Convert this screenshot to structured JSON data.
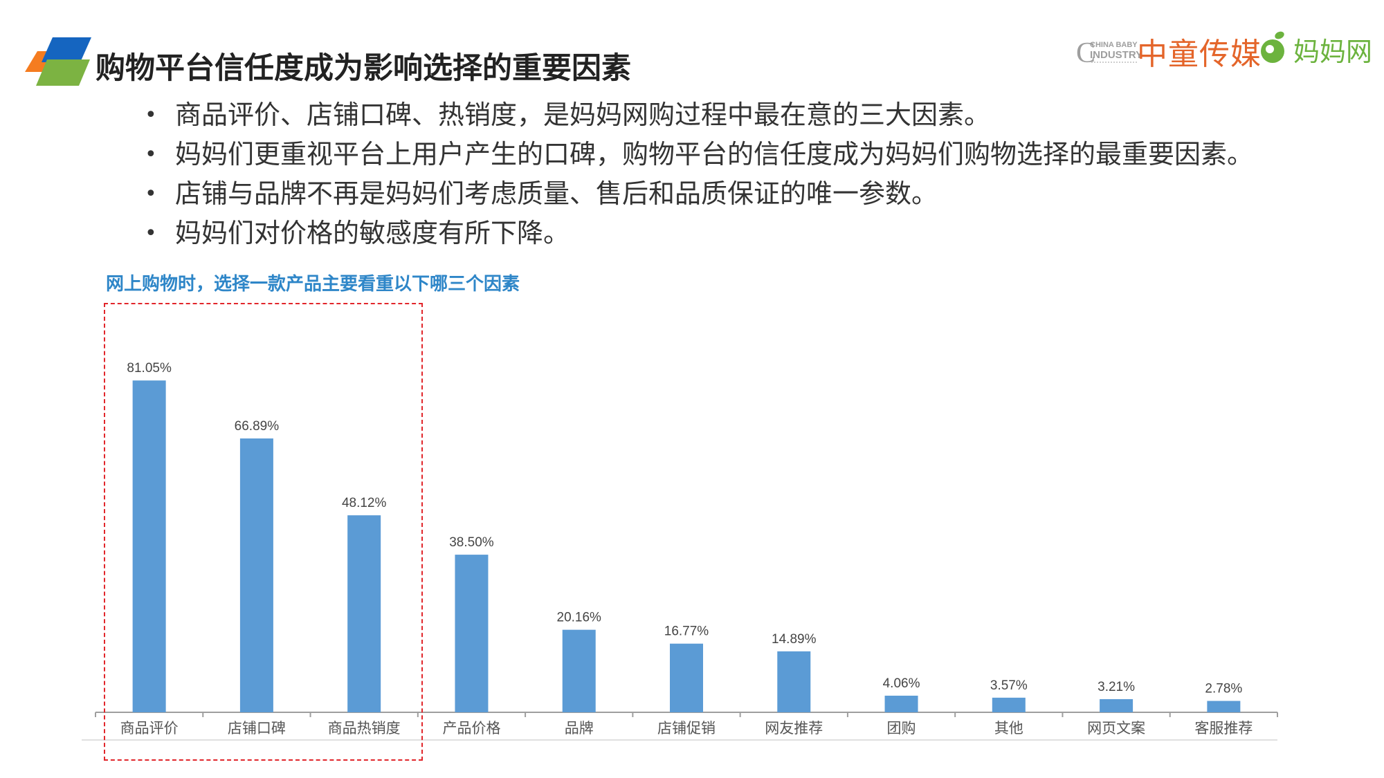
{
  "header": {
    "title": "购物平台信任度成为影响选择的重要因素",
    "brand_cbi_en_top": "CHINA BABY",
    "brand_cbi_en_bottom": "INDUSTRY",
    "brand_cbi_cn": "中童传媒",
    "brand_mmw": "妈妈网",
    "accent_colors": {
      "blue": "#1565c0",
      "orange": "#f57c20",
      "green": "#7cb342"
    }
  },
  "bullets": [
    "商品评价、店铺口碑、热销度，是妈妈网购过程中最在意的三大因素。",
    "妈妈们更重视平台上用户产生的口碑，购物平台的信任度成为妈妈们购物选择的最重要因素。",
    "店铺与品牌不再是妈妈们考虑质量、售后和品质保证的唯一参数。",
    "妈妈们对价格的敏感度有所下降。"
  ],
  "bullet_symbol": "•",
  "chart_data": {
    "type": "bar",
    "title": "网上购物时，选择一款产品主要看重以下哪三个因素",
    "categories": [
      "商品评价",
      "店铺口碑",
      "商品热销度",
      "产品价格",
      "品牌",
      "店铺促销",
      "网友推荐",
      "团购",
      "其他",
      "网页文案",
      "客服推荐"
    ],
    "values": [
      81.05,
      66.89,
      48.12,
      38.5,
      20.16,
      16.77,
      14.89,
      4.06,
      3.57,
      3.21,
      2.78
    ],
    "labels": [
      "81.05%",
      "66.89%",
      "48.12%",
      "38.50%",
      "20.16%",
      "16.77%",
      "14.89%",
      "4.06%",
      "3.57%",
      "3.21%",
      "2.78%"
    ],
    "ylim": [
      0,
      100
    ],
    "bar_color": "#5b9bd5",
    "highlight": {
      "first_n": 3,
      "style": "red dashed box",
      "color": "#e1252a"
    },
    "grid": false,
    "legend": "none"
  }
}
